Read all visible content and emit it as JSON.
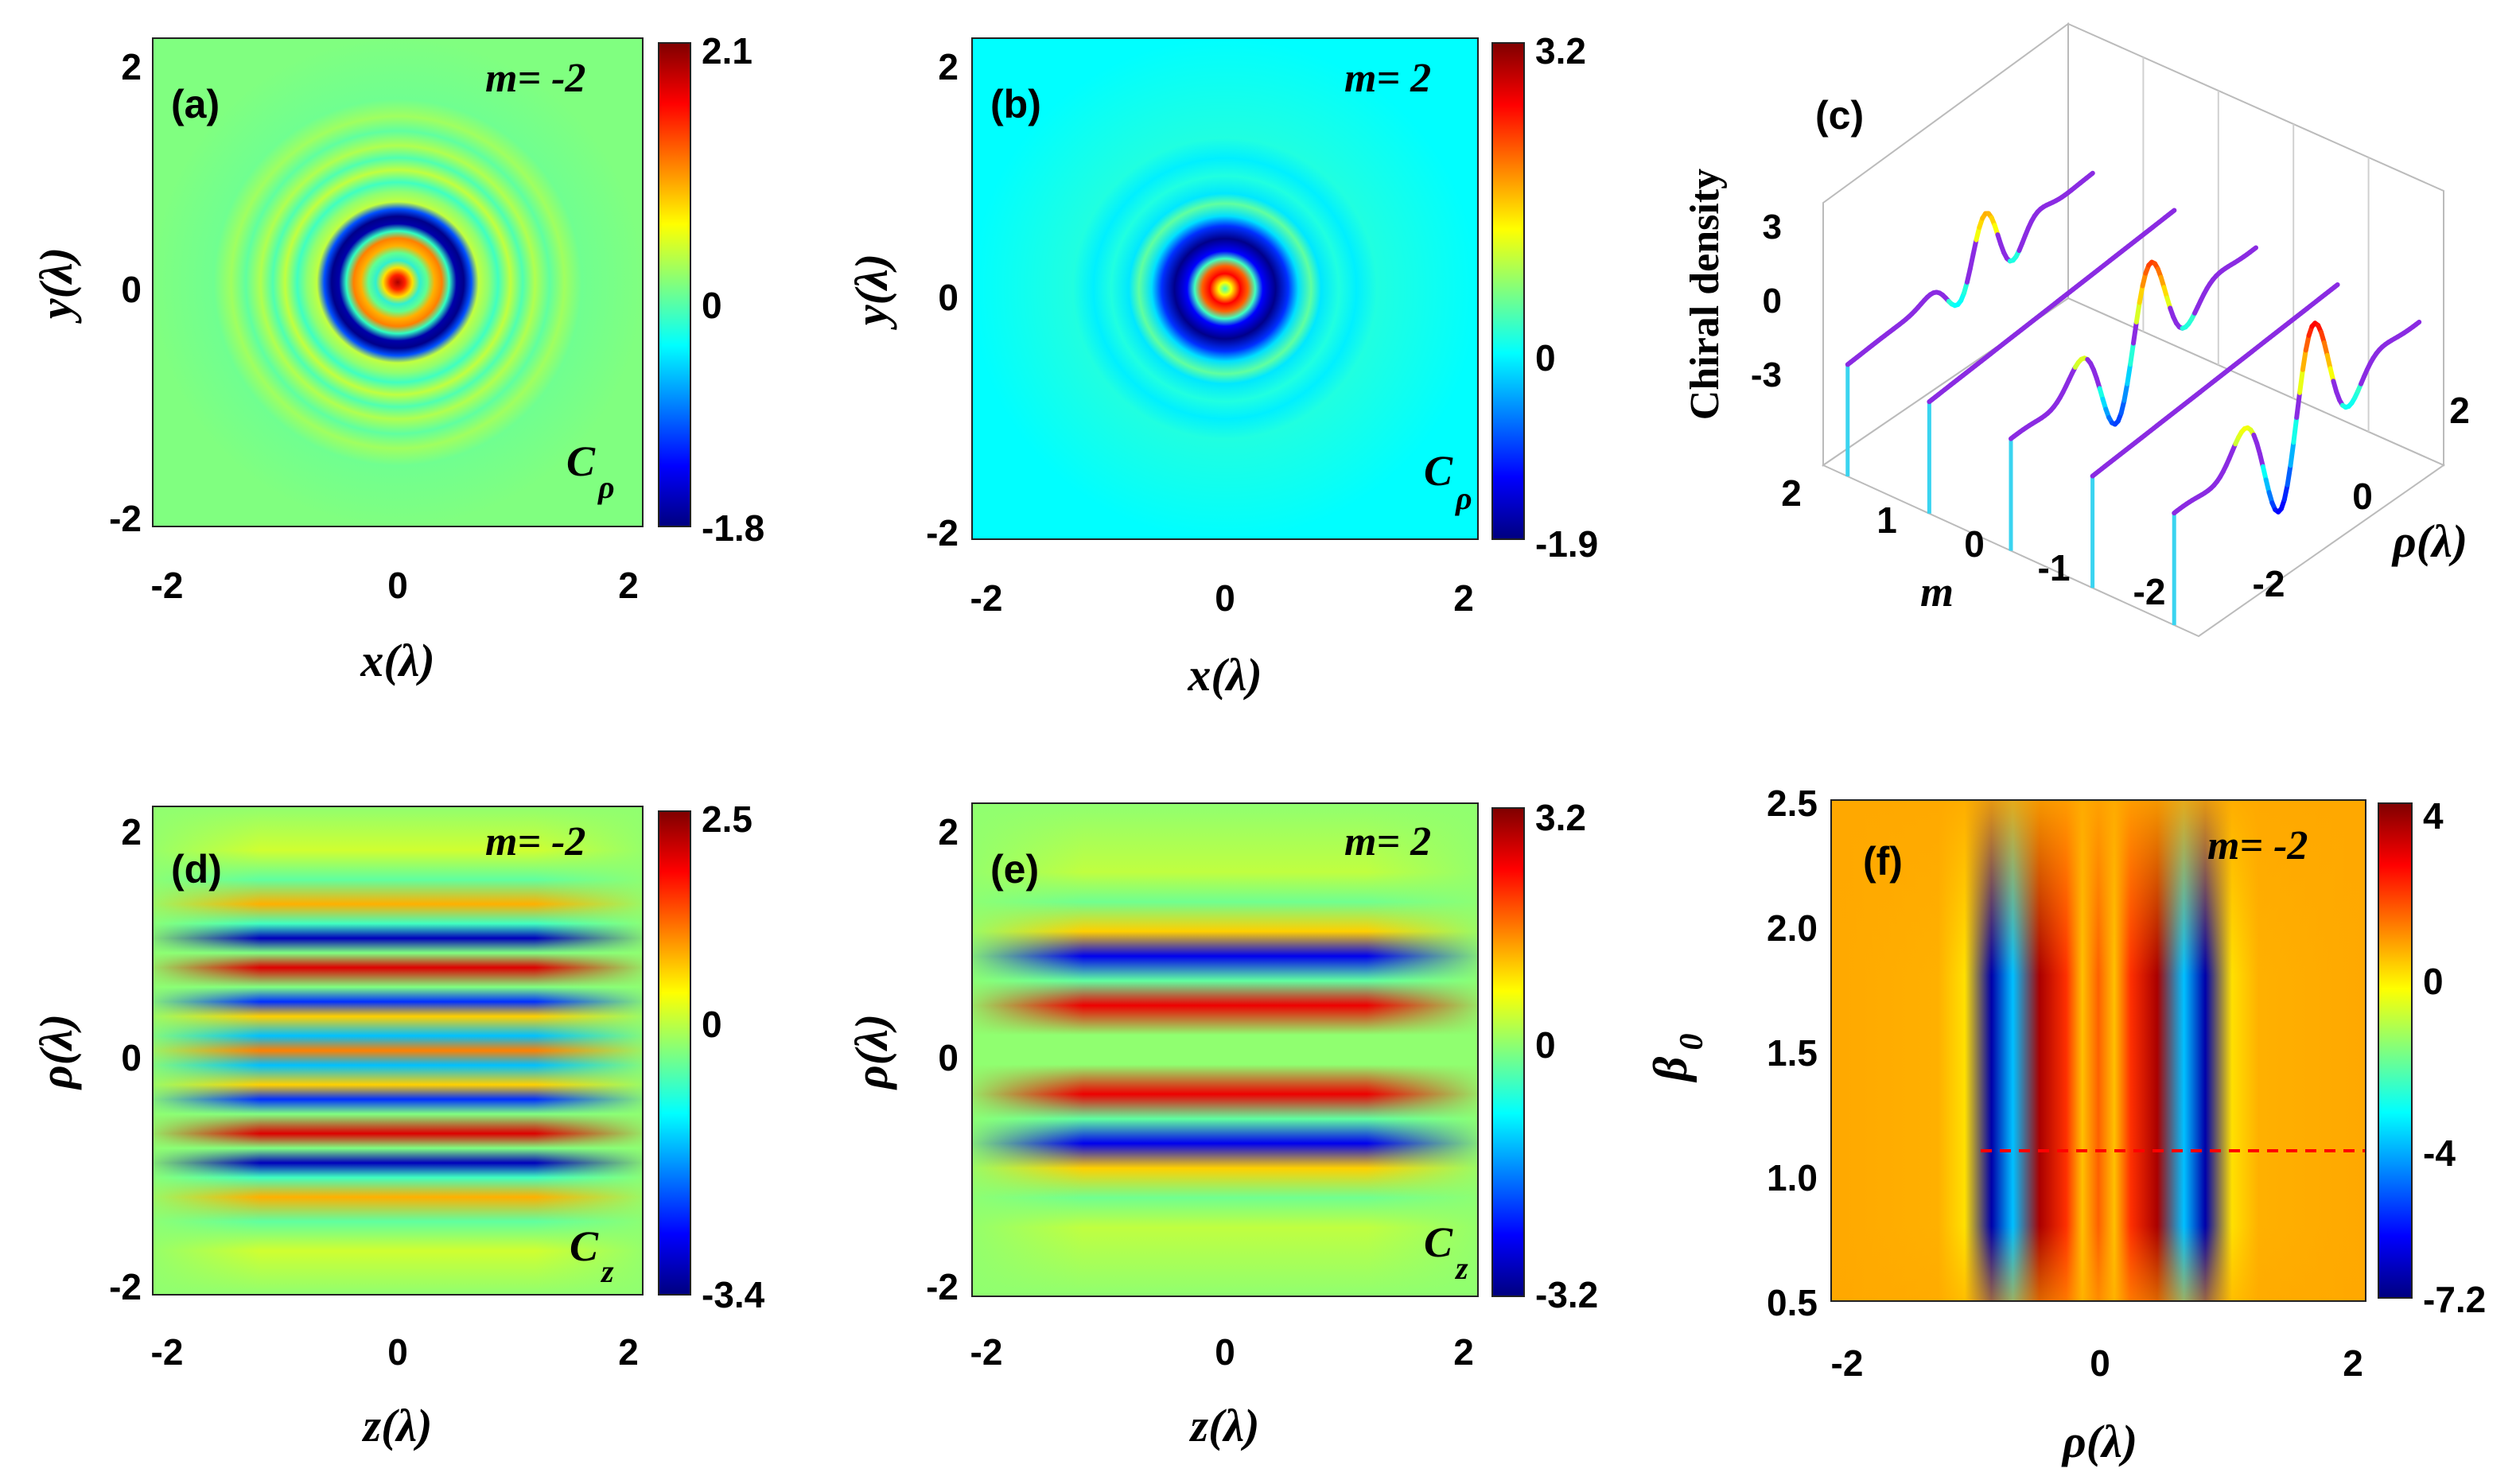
{
  "figure": "six-panel chiral density figure",
  "colors": {
    "jet_stops": [
      "#00007f",
      "#0000ff",
      "#007fff",
      "#00ffff",
      "#7fff7f",
      "#ffff00",
      "#ff7f00",
      "#ff0000",
      "#7f0000"
    ],
    "dashed_line": "#ff0000",
    "stem_color": "#3ad4f0"
  },
  "chart_data": [
    {
      "id": "a",
      "type": "heatmap",
      "panel_label": "(a)",
      "annotation": "m= -2",
      "corner_label": "C",
      "corner_sub": "ρ",
      "xlabel": "x(λ)",
      "ylabel": "y(λ)",
      "xlim": [
        -2.1,
        2.1
      ],
      "ylim": [
        -2.1,
        2.1
      ],
      "xticks": [
        "-2",
        "0",
        "2"
      ],
      "yticks": [
        "-2",
        "0",
        "2"
      ],
      "colorbar": {
        "min": -1.8,
        "max": 2.1,
        "ticks": [
          "2.1",
          "0",
          "-1.8"
        ]
      },
      "pattern": "radial rings",
      "m": -2
    },
    {
      "id": "b",
      "type": "heatmap",
      "panel_label": "(b)",
      "annotation": "m= 2",
      "corner_label": "C",
      "corner_sub": "ρ",
      "xlabel": "x(λ)",
      "ylabel": "y(λ)",
      "xlim": [
        -2.1,
        2.1
      ],
      "ylim": [
        -2.1,
        2.1
      ],
      "xticks": [
        "-2",
        "0",
        "2"
      ],
      "yticks": [
        "-2",
        "0",
        "2"
      ],
      "colorbar": {
        "min": -1.9,
        "max": 3.2,
        "ticks": [
          "3.2",
          "0",
          "-1.9"
        ]
      },
      "pattern": "radial rings",
      "m": 2
    },
    {
      "id": "c",
      "type": "line3d",
      "panel_label": "(c)",
      "zlabel": "Chiral density",
      "xlabel": "m",
      "ylabel": "ρ(λ)",
      "m_ticks": [
        "2",
        "1",
        "0",
        "-1",
        "-2"
      ],
      "rho_ticks": [
        "-2",
        "0",
        "2"
      ],
      "z_ticks": [
        "3",
        "0",
        "-3"
      ],
      "m_values": [
        2,
        1,
        0,
        -1,
        -2
      ],
      "series_note": "chiral density vs ρ for each m, colored by value"
    },
    {
      "id": "d",
      "type": "heatmap",
      "panel_label": "(d)",
      "annotation": "m= -2",
      "corner_label": "C",
      "corner_sub": "z",
      "xlabel": "z(λ)",
      "ylabel": "ρ(λ)",
      "xlim": [
        -2.1,
        2.1
      ],
      "ylim": [
        -2.1,
        2.1
      ],
      "xticks": [
        "-2",
        "0",
        "2"
      ],
      "yticks": [
        "-2",
        "0",
        "2"
      ],
      "colorbar": {
        "min": -3.4,
        "max": 2.5,
        "ticks": [
          "2.5",
          "0",
          "-3.4"
        ]
      },
      "pattern": "horizontal bands",
      "m": -2
    },
    {
      "id": "e",
      "type": "heatmap",
      "panel_label": "(e)",
      "annotation": "m= 2",
      "corner_label": "C",
      "corner_sub": "z",
      "xlabel": "z(λ)",
      "ylabel": "ρ(λ)",
      "xlim": [
        -2.1,
        2.1
      ],
      "ylim": [
        -2.1,
        2.1
      ],
      "xticks": [
        "-2",
        "0",
        "2"
      ],
      "yticks": [
        "-2",
        "0",
        "2"
      ],
      "colorbar": {
        "min": -3.2,
        "max": 3.2,
        "ticks": [
          "3.2",
          "0",
          "-3.2"
        ]
      },
      "pattern": "horizontal bands",
      "m": 2
    },
    {
      "id": "f",
      "type": "heatmap",
      "panel_label": "(f)",
      "annotation": "m= -2",
      "xlabel": "ρ(λ)",
      "ylabel": "β0",
      "ylabel_main": "β",
      "ylabel_sub": "0",
      "xlim": [
        -2.1,
        2.1
      ],
      "ylim": [
        0.5,
        2.5
      ],
      "xticks": [
        "-2",
        "0",
        "2"
      ],
      "yticks": [
        "2.5",
        "2.0",
        "1.5",
        "1.0",
        "0.5"
      ],
      "colorbar": {
        "min": -7.2,
        "max": 4,
        "ticks": [
          "4",
          "0",
          "-4",
          "-7.2"
        ]
      },
      "dashed_line_beta": 1.1,
      "m": -2
    }
  ]
}
